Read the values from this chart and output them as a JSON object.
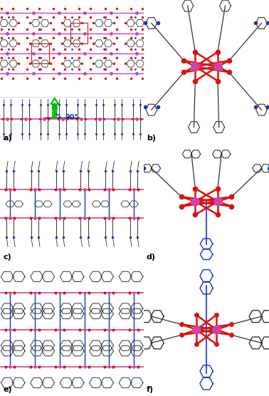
{
  "figure_width": 3.78,
  "figure_height": 5.56,
  "dpi": 100,
  "bg": "#ffffff",
  "pink": "#cc44aa",
  "red": "#dd1111",
  "blue": "#1133cc",
  "gray": "#555555",
  "darkgray": "#333333",
  "green": "#00bb00",
  "label_fs": 8,
  "panels": {
    "a": [
      0.0,
      0.635,
      0.535,
      0.365
    ],
    "b": [
      0.535,
      0.635,
      0.465,
      0.365
    ],
    "c": [
      0.0,
      0.335,
      0.535,
      0.3
    ],
    "d": [
      0.535,
      0.335,
      0.465,
      0.3
    ],
    "e": [
      0.0,
      0.0,
      0.535,
      0.335
    ],
    "f": [
      0.535,
      0.0,
      0.465,
      0.335
    ]
  }
}
